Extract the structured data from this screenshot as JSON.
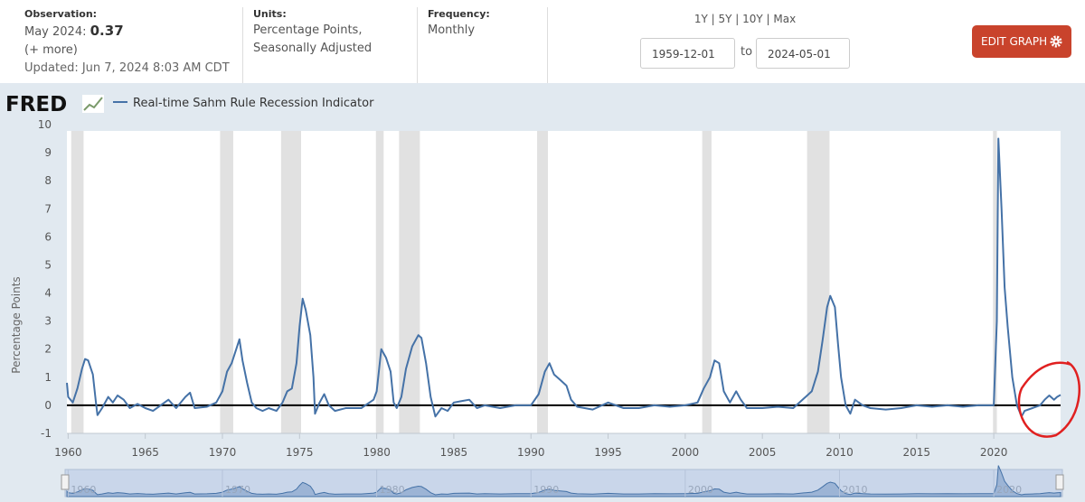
{
  "header": {
    "observation_label": "Observation:",
    "observation_date": "May 2024:",
    "observation_value": 0.37,
    "more": "(+ more)",
    "updated": "Updated: Jun 7, 2024 8:03 AM CDT",
    "units_label": "Units:",
    "units_line1": "Percentage Points,",
    "units_line2": "Seasonally Adjusted",
    "frequency_label": "Frequency:",
    "frequency": "Monthly",
    "range_links": "1Y | 5Y | 10Y | Max",
    "start_date": "1959-12-01",
    "to": "to",
    "end_date": "2024-05-01",
    "edit_button": "EDIT GRAPH",
    "logo": "FRED"
  },
  "chart_data": {
    "type": "line",
    "y_label": "Percentage Points",
    "xlim": [
      1959.92,
      2024.33
    ],
    "xticks": [
      1960,
      1965,
      1970,
      1975,
      1980,
      1985,
      1990,
      1995,
      2000,
      2005,
      2010,
      2015,
      2020
    ],
    "ylim": [
      -1,
      10
    ],
    "yticks": [
      -1,
      0,
      1,
      2,
      3,
      4,
      5,
      6,
      7,
      8,
      9,
      10
    ],
    "grid": false,
    "zero_line": 0,
    "recessions": [
      [
        1960.2,
        1961.0
      ],
      [
        1969.85,
        1970.7
      ],
      [
        1973.8,
        1975.1
      ],
      [
        1979.95,
        1980.45
      ],
      [
        1981.45,
        1982.8
      ],
      [
        1990.4,
        1991.1
      ],
      [
        2001.1,
        2001.7
      ],
      [
        2007.9,
        2009.35
      ],
      [
        2019.95,
        2020.2
      ]
    ],
    "navigator_ticks": [
      1960,
      1970,
      1980,
      1990,
      2000,
      2010,
      2020
    ],
    "series": [
      {
        "name": "Real-time Sahm Rule Recession Indicator",
        "color": "#4572a7",
        "x": [
          1959.92,
          1960.0,
          1960.3,
          1960.6,
          1960.9,
          1961.1,
          1961.3,
          1961.6,
          1961.8,
          1961.9,
          1962.2,
          1962.6,
          1962.9,
          1963.2,
          1963.6,
          1964.0,
          1964.5,
          1965.0,
          1965.5,
          1966.0,
          1966.5,
          1967.0,
          1967.6,
          1967.9,
          1968.2,
          1969.0,
          1969.6,
          1970.0,
          1970.3,
          1970.6,
          1970.9,
          1971.1,
          1971.3,
          1971.6,
          1971.9,
          1972.2,
          1972.6,
          1973.0,
          1973.5,
          1973.9,
          1974.2,
          1974.5,
          1974.8,
          1975.0,
          1975.2,
          1975.4,
          1975.7,
          1975.9,
          1976.0,
          1976.3,
          1976.6,
          1976.9,
          1977.3,
          1978.0,
          1979.0,
          1979.8,
          1980.0,
          1980.3,
          1980.6,
          1980.9,
          1981.1,
          1981.3,
          1981.6,
          1981.9,
          1982.3,
          1982.7,
          1982.9,
          1983.2,
          1983.5,
          1983.8,
          1984.2,
          1984.6,
          1985.0,
          1986.0,
          1986.5,
          1987.0,
          1988.0,
          1989.0,
          1990.0,
          1990.5,
          1990.9,
          1991.2,
          1991.5,
          1991.9,
          1992.3,
          1992.6,
          1993.0,
          1994.0,
          1995.0,
          1996.0,
          1997.0,
          1998.0,
          1999.0,
          2000.0,
          2000.8,
          2001.2,
          2001.6,
          2001.9,
          2002.2,
          2002.5,
          2002.9,
          2003.3,
          2003.6,
          2004.0,
          2005.0,
          2006.0,
          2007.0,
          2007.8,
          2008.2,
          2008.6,
          2008.9,
          2009.2,
          2009.4,
          2009.7,
          2009.9,
          2010.1,
          2010.4,
          2010.7,
          2011.0,
          2011.5,
          2012.0,
          2013.0,
          2014.0,
          2015.0,
          2016.0,
          2017.0,
          2018.0,
          2019.0,
          2020.0,
          2020.2,
          2020.3,
          2020.5,
          2020.7,
          2020.9,
          2021.2,
          2021.5,
          2021.8,
          2022.0,
          2022.5,
          2023.0,
          2023.3,
          2023.6,
          2023.9,
          2024.1,
          2024.33
        ],
        "values": [
          0.8,
          0.3,
          0.1,
          0.6,
          1.3,
          1.65,
          1.6,
          1.1,
          0.1,
          -0.35,
          -0.1,
          0.3,
          0.1,
          0.35,
          0.2,
          -0.1,
          0.05,
          -0.1,
          -0.2,
          0.0,
          0.2,
          -0.1,
          0.3,
          0.45,
          -0.1,
          -0.05,
          0.1,
          0.5,
          1.2,
          1.5,
          2.0,
          2.35,
          1.6,
          0.8,
          0.1,
          -0.1,
          -0.2,
          -0.1,
          -0.2,
          0.1,
          0.5,
          0.6,
          1.5,
          2.8,
          3.8,
          3.4,
          2.5,
          1.0,
          -0.3,
          0.1,
          0.4,
          0.0,
          -0.2,
          -0.1,
          -0.1,
          0.2,
          0.5,
          2.0,
          1.7,
          1.2,
          0.1,
          -0.1,
          0.3,
          1.3,
          2.1,
          2.5,
          2.4,
          1.5,
          0.3,
          -0.4,
          -0.1,
          -0.2,
          0.1,
          0.2,
          -0.1,
          0.0,
          -0.1,
          0.0,
          0.0,
          0.4,
          1.2,
          1.5,
          1.1,
          0.9,
          0.7,
          0.2,
          -0.05,
          -0.15,
          0.1,
          -0.1,
          -0.1,
          0.0,
          -0.05,
          0.0,
          0.1,
          0.6,
          1.0,
          1.6,
          1.5,
          0.5,
          0.1,
          0.5,
          0.2,
          -0.1,
          -0.1,
          -0.05,
          -0.1,
          0.3,
          0.5,
          1.2,
          2.3,
          3.5,
          3.9,
          3.5,
          2.2,
          1.0,
          0.0,
          -0.3,
          0.2,
          0.0,
          -0.1,
          -0.15,
          -0.1,
          0.0,
          -0.05,
          0.0,
          -0.05,
          0.0,
          0.0,
          3.0,
          9.5,
          7.0,
          4.2,
          2.8,
          1.0,
          0.0,
          -0.4,
          -0.2,
          -0.1,
          0.0,
          0.2,
          0.35,
          0.2,
          0.3,
          0.37
        ]
      }
    ]
  }
}
